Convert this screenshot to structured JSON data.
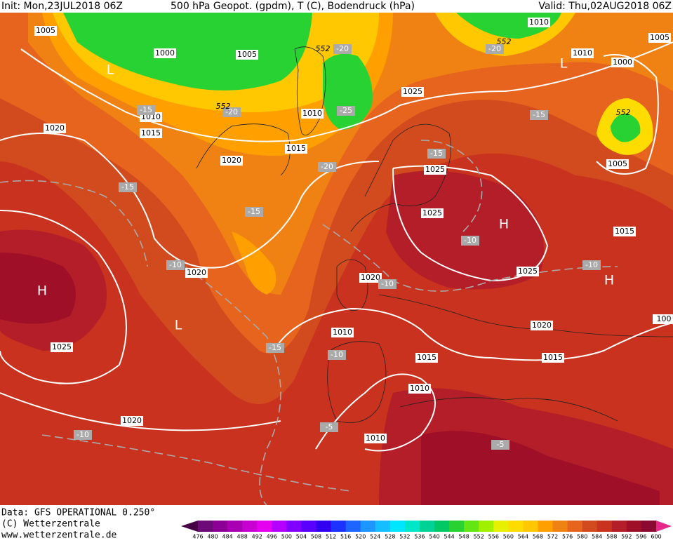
{
  "header": {
    "init": "Init: Mon,23JUL2018 06Z",
    "title": "500 hPa Geopot. (gpdm), T (C), Bodendruck (hPa)",
    "valid": "Valid: Thu,02AUG2018 06Z"
  },
  "footer": {
    "data": "Data: GFS OPERATIONAL 0.250°",
    "copyright": "(C) Wetterzentrale",
    "url": "www.wetterzentrale.de"
  },
  "colorbar": {
    "levels": [
      476,
      480,
      484,
      488,
      492,
      496,
      500,
      504,
      508,
      512,
      516,
      520,
      524,
      528,
      532,
      536,
      540,
      544,
      548,
      552,
      556,
      560,
      564,
      568,
      572,
      576,
      580,
      584,
      588,
      592,
      596,
      600
    ],
    "colors": [
      "#460046",
      "#6e0a78",
      "#8c0096",
      "#aa00b4",
      "#c800d2",
      "#e600f0",
      "#b400ff",
      "#8200ff",
      "#5a00ff",
      "#3200f0",
      "#1e32ff",
      "#1e64ff",
      "#1e96ff",
      "#14beff",
      "#00e6ff",
      "#00e6c8",
      "#00d296",
      "#00c864",
      "#28d232",
      "#64e614",
      "#a0f000",
      "#e6f000",
      "#ffdc00",
      "#ffc800",
      "#ffa000",
      "#f08214",
      "#e6641e",
      "#d24b1e",
      "#c8321e",
      "#b41e28",
      "#a00f28",
      "#8c0a32",
      "#e6288c"
    ]
  },
  "pressure_labels": [
    "1005",
    "1000",
    "1005",
    "1010",
    "1015",
    "1020",
    "1020",
    "1015",
    "1010",
    "1025",
    "1025",
    "1025",
    "1020",
    "1020",
    "1025",
    "1020",
    "1015",
    "1015",
    "1010",
    "1010",
    "1010",
    "1025",
    "1020",
    "1010",
    "1010",
    "1000",
    "1005",
    "1005",
    "1015",
    "100"
  ],
  "temperature_labels": [
    "-15",
    "-20",
    "-20",
    "-20",
    "-25",
    "-20",
    "-15",
    "-15",
    "-15",
    "-15",
    "-10",
    "-10",
    "-10",
    "-10",
    "-15",
    "-10",
    "-10",
    "-5",
    "-5"
  ],
  "geopotential_labels": [
    "552",
    "552",
    "552",
    "552"
  ],
  "centers": [
    "L",
    "L",
    "H",
    "H",
    "L",
    "H"
  ]
}
